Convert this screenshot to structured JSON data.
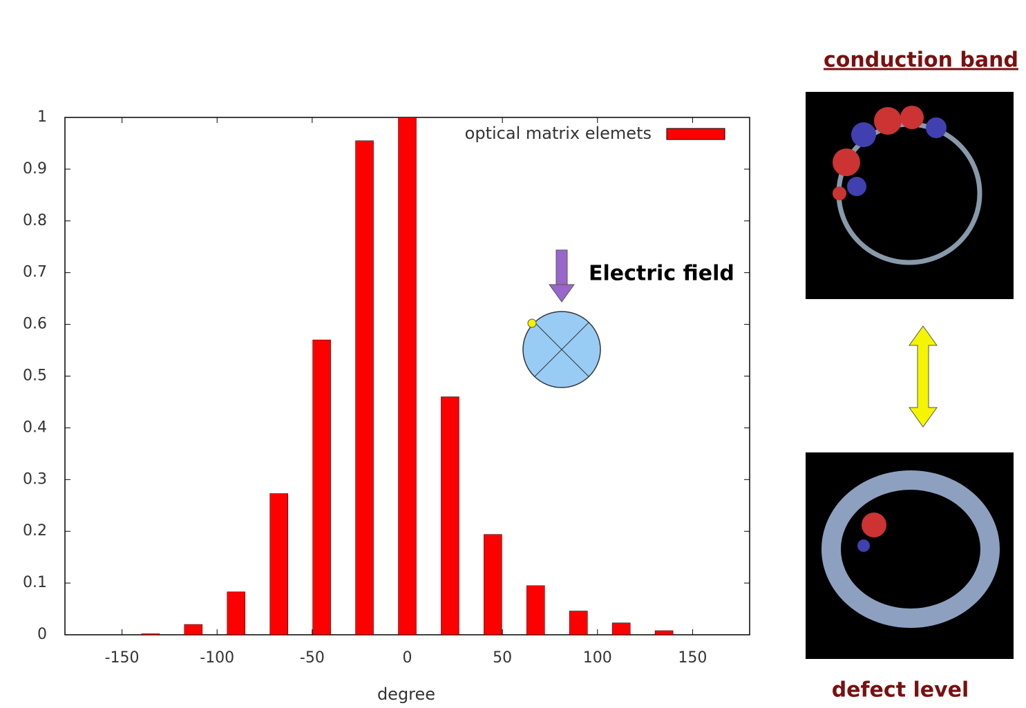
{
  "chart_data": {
    "type": "bar",
    "x": [
      -135,
      -112.5,
      -90,
      -67.5,
      -45,
      -22.5,
      0,
      22.5,
      45,
      67.5,
      90,
      112.5,
      135
    ],
    "series": [
      {
        "name": "optical matrix elemets",
        "color": "#ff0000",
        "values": [
          0.002,
          0.02,
          0.083,
          0.273,
          0.57,
          0.955,
          1.0,
          0.46,
          0.194,
          0.095,
          0.046,
          0.023,
          0.008
        ]
      }
    ],
    "xlim": [
      -180,
      180
    ],
    "xticks": [
      -150,
      -100,
      -50,
      0,
      50,
      100,
      150
    ],
    "ylim": [
      0,
      1
    ],
    "yticks": [
      0,
      0.1,
      0.2,
      0.3,
      0.4,
      0.5,
      0.6,
      0.7,
      0.8,
      0.9,
      1
    ],
    "x_label": "degree",
    "legend": "upper right",
    "annotations": [
      "Electric field",
      "conduction band",
      "defect level"
    ]
  }
}
